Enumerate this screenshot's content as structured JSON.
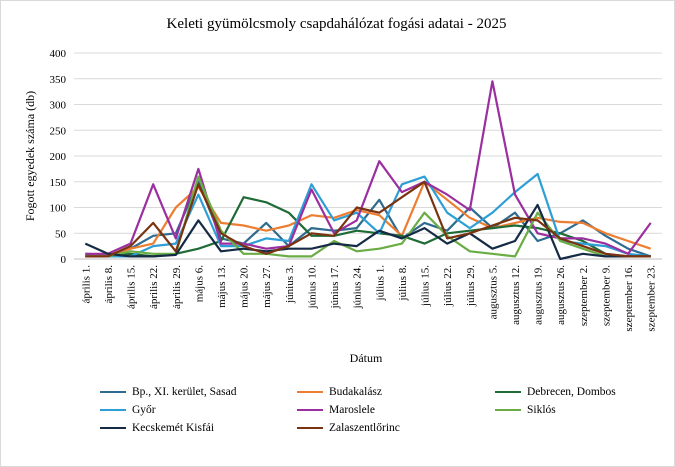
{
  "chart_data": {
    "type": "line",
    "title": "Keleti gyümölcsmoly csapdahálózat fogási adatai - 2025",
    "xlabel": "Dátum",
    "ylabel": "Fogott egyedek száma (db)",
    "ylim": [
      0,
      400
    ],
    "yticks": [
      0,
      50,
      100,
      150,
      200,
      250,
      300,
      350,
      400
    ],
    "grid": "horizontal",
    "legend_position": "bottom",
    "categories": [
      "április 1.",
      "április 8.",
      "április 15.",
      "április 22.",
      "április 29.",
      "május 6.",
      "május 13.",
      "május 20.",
      "május 27.",
      "június 3.",
      "június 10.",
      "június 17.",
      "június 24.",
      "július 1.",
      "július 8.",
      "július 15.",
      "július 22.",
      "július 29.",
      "augusztus 5.",
      "augusztus 12.",
      "augusztus 19.",
      "augusztus 26.",
      "szeptember 2.",
      "szeptember 9.",
      "szeptember 16.",
      "szeptember 23."
    ],
    "series": [
      {
        "name": "Bp., XI. kerület, Sasad",
        "color": "#2e6b8f",
        "values": [
          10,
          8,
          20,
          45,
          50,
          150,
          40,
          30,
          70,
          25,
          60,
          55,
          60,
          115,
          40,
          70,
          55,
          100,
          60,
          90,
          35,
          50,
          75,
          45,
          20,
          5
        ]
      },
      {
        "name": "Budakalász",
        "color": "#ed7d31",
        "values": [
          5,
          8,
          20,
          30,
          100,
          140,
          70,
          65,
          55,
          65,
          85,
          80,
          95,
          85,
          45,
          150,
          115,
          80,
          60,
          70,
          80,
          72,
          70,
          50,
          35,
          20
        ]
      },
      {
        "name": "Debrecen, Dombos",
        "color": "#1e6b35",
        "values": [
          5,
          5,
          10,
          5,
          10,
          20,
          35,
          120,
          110,
          90,
          45,
          45,
          55,
          50,
          45,
          30,
          50,
          55,
          60,
          65,
          60,
          50,
          35,
          10,
          5,
          5
        ]
      },
      {
        "name": "Győr",
        "color": "#2e9fd6",
        "values": [
          5,
          5,
          5,
          25,
          30,
          125,
          25,
          25,
          40,
          35,
          145,
          75,
          90,
          50,
          145,
          160,
          90,
          60,
          90,
          130,
          165,
          35,
          30,
          25,
          10,
          5
        ]
      },
      {
        "name": "Maroslele",
        "color": "#9b2fa0",
        "values": [
          10,
          10,
          30,
          145,
          40,
          175,
          30,
          30,
          20,
          25,
          135,
          50,
          75,
          190,
          130,
          150,
          125,
          95,
          345,
          125,
          50,
          40,
          40,
          30,
          10,
          70
        ]
      },
      {
        "name": "Siklós",
        "color": "#6aad45",
        "values": [
          5,
          5,
          15,
          10,
          10,
          160,
          55,
          10,
          10,
          5,
          5,
          35,
          15,
          20,
          30,
          90,
          45,
          15,
          10,
          5,
          90,
          35,
          20,
          5,
          5,
          5
        ]
      },
      {
        "name": "Kecskemét Kisfái",
        "color": "#152b45",
        "values": [
          30,
          10,
          5,
          5,
          8,
          75,
          15,
          20,
          15,
          20,
          20,
          30,
          25,
          55,
          40,
          60,
          30,
          50,
          20,
          35,
          105,
          0,
          10,
          5,
          5,
          5
        ]
      },
      {
        "name": "Zalaszentlőrinc",
        "color": "#7a3310",
        "values": [
          5,
          5,
          25,
          70,
          15,
          145,
          50,
          25,
          10,
          25,
          50,
          45,
          100,
          90,
          120,
          150,
          40,
          50,
          65,
          80,
          75,
          40,
          25,
          10,
          5,
          5
        ]
      }
    ]
  }
}
